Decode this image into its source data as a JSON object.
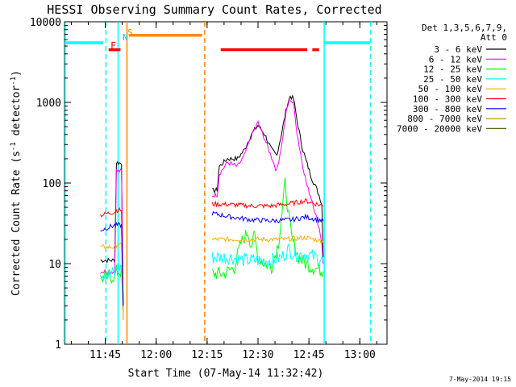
{
  "chart_data": {
    "type": "line",
    "title": "HESSI Observing Summary Count Rates, Corrected",
    "xlabel": "Start Time (07-May-14 11:32:42)",
    "ylabel_main": "Corrected Count Rate (s",
    "ylabel_sup1": "-1",
    "ylabel_mid": " detector",
    "ylabel_sup2": "-1",
    "ylabel_end": ")",
    "yscale": "log",
    "ylim": [
      1,
      10000
    ],
    "xlim_minutes_after_1130": [
      3,
      98
    ],
    "x_ticks": [
      {
        "label": "11:45",
        "min": 15
      },
      {
        "label": "12:00",
        "min": 30
      },
      {
        "label": "12:15",
        "min": 45
      },
      {
        "label": "12:30",
        "min": 60
      },
      {
        "label": "12:45",
        "min": 75
      },
      {
        "label": "13:00",
        "min": 90
      }
    ],
    "y_ticks": [
      {
        "label": "1",
        "value": 1
      },
      {
        "label": "10",
        "value": 10
      },
      {
        "label": "100",
        "value": 100
      },
      {
        "label": "1000",
        "value": 1000
      },
      {
        "label": "10000",
        "value": 10000
      }
    ],
    "legend_header": [
      "Det 1,3,5,6,7,9,",
      "Att 0"
    ],
    "legend_placement": "right",
    "footer_date": "7-May-2014 19:15",
    "flag_labels": {
      "F": "F",
      "N": "N",
      "S": "S"
    },
    "series": [
      {
        "name": "3 - 6 keV",
        "color": "#000000",
        "points": [
          [
            13.6,
            11
          ],
          [
            17.8,
            11
          ],
          [
            18.3,
            180
          ],
          [
            19.8,
            175
          ],
          [
            20.3,
            3
          ],
          [
            46.5,
            80
          ],
          [
            48,
            82
          ],
          [
            48.6,
            160
          ],
          [
            51,
            200
          ],
          [
            54,
            200
          ],
          [
            56,
            260
          ],
          [
            58,
            400
          ],
          [
            60,
            520
          ],
          [
            62,
            400
          ],
          [
            64,
            260
          ],
          [
            65.5,
            220
          ],
          [
            67,
            420
          ],
          [
            68.5,
            900
          ],
          [
            69.5,
            1200
          ],
          [
            70.5,
            1100
          ],
          [
            71.5,
            600
          ],
          [
            73,
            280
          ],
          [
            74.5,
            170
          ],
          [
            76,
            110
          ],
          [
            77,
            90
          ],
          [
            78,
            70
          ],
          [
            78.8,
            55
          ],
          [
            79.2,
            12
          ]
        ]
      },
      {
        "name": "6 - 12 keV",
        "color": "#ff00ff",
        "points": [
          [
            13.6,
            8
          ],
          [
            17.8,
            8
          ],
          [
            18.3,
            140
          ],
          [
            19.8,
            140
          ],
          [
            20.3,
            2.5
          ],
          [
            46.5,
            70
          ],
          [
            48,
            72
          ],
          [
            48.6,
            130
          ],
          [
            51,
            180
          ],
          [
            54,
            160
          ],
          [
            56,
            220
          ],
          [
            58,
            380
          ],
          [
            60,
            560
          ],
          [
            62,
            350
          ],
          [
            64,
            210
          ],
          [
            65.5,
            140
          ],
          [
            67,
            300
          ],
          [
            68.5,
            850
          ],
          [
            69.5,
            1100
          ],
          [
            70.5,
            950
          ],
          [
            71.5,
            420
          ],
          [
            73,
            180
          ],
          [
            74.5,
            90
          ],
          [
            76,
            60
          ],
          [
            77,
            40
          ],
          [
            78,
            28
          ],
          [
            78.8,
            18
          ],
          [
            79.2,
            10
          ]
        ]
      },
      {
        "name": "12 - 25 keV",
        "color": "#00ff00",
        "points": [
          [
            13.6,
            6.5
          ],
          [
            17.8,
            7
          ],
          [
            18.3,
            8
          ],
          [
            19.8,
            8
          ],
          [
            20.3,
            2
          ],
          [
            46.5,
            7.5
          ],
          [
            50,
            7.5
          ],
          [
            53,
            9
          ],
          [
            55,
            18
          ],
          [
            57,
            25
          ],
          [
            58,
            17
          ],
          [
            59,
            22
          ],
          [
            60,
            12
          ],
          [
            62,
            10
          ],
          [
            64,
            9
          ],
          [
            66,
            18
          ],
          [
            67,
            40
          ],
          [
            68,
            100
          ],
          [
            69,
            40
          ],
          [
            70,
            20
          ],
          [
            72,
            12
          ],
          [
            74,
            10
          ],
          [
            76,
            9
          ],
          [
            78,
            8.5
          ],
          [
            79.2,
            8
          ]
        ]
      },
      {
        "name": "25 - 50 keV",
        "color": "#00ffff",
        "points": [
          [
            13.6,
            7.5
          ],
          [
            17.8,
            7.5
          ],
          [
            18.3,
            9
          ],
          [
            19.8,
            9
          ],
          [
            20.3,
            2
          ],
          [
            46.5,
            12
          ],
          [
            52,
            12
          ],
          [
            56,
            11
          ],
          [
            60,
            11
          ],
          [
            64,
            11
          ],
          [
            67,
            12
          ],
          [
            69,
            15
          ],
          [
            71,
            13
          ],
          [
            74,
            13
          ],
          [
            77,
            12
          ],
          [
            79.2,
            11
          ]
        ]
      },
      {
        "name": "50 - 100 keV",
        "color": "#ffaa00",
        "points": [
          [
            13.6,
            16
          ],
          [
            17.8,
            16
          ],
          [
            18.3,
            17
          ],
          [
            19.8,
            17
          ],
          [
            20.3,
            2
          ],
          [
            46.5,
            20
          ],
          [
            55,
            20
          ],
          [
            62,
            20
          ],
          [
            68,
            20
          ],
          [
            74,
            21
          ],
          [
            79.2,
            19
          ]
        ]
      },
      {
        "name": "100 - 300 keV",
        "color": "#ff0000",
        "points": [
          [
            13.6,
            40
          ],
          [
            17.8,
            44
          ],
          [
            18.3,
            46
          ],
          [
            19.8,
            46
          ],
          [
            20.3,
            3
          ],
          [
            46.5,
            55
          ],
          [
            52,
            54
          ],
          [
            58,
            52
          ],
          [
            64,
            52
          ],
          [
            70,
            56
          ],
          [
            74,
            60
          ],
          [
            79.2,
            52
          ]
        ]
      },
      {
        "name": "300 - 800 keV",
        "color": "#0000ff",
        "points": [
          [
            13.6,
            26
          ],
          [
            17.8,
            30
          ],
          [
            18.3,
            30
          ],
          [
            19.8,
            30
          ],
          [
            20.3,
            3
          ],
          [
            46.5,
            42
          ],
          [
            52,
            38
          ],
          [
            58,
            35
          ],
          [
            64,
            34
          ],
          [
            70,
            35
          ],
          [
            74,
            38
          ],
          [
            79.2,
            34
          ]
        ]
      },
      {
        "name": "800 - 7000 keV",
        "color": "#cc8800",
        "points": []
      },
      {
        "name": "7000 - 20000 keV",
        "color": "#666600",
        "points": []
      }
    ],
    "flag_bars": [
      {
        "label": "saa_line_left",
        "color": "#00ffff",
        "x0": 3,
        "x1": 14.5,
        "y": 5500
      },
      {
        "label": "saa_line_right",
        "color": "#00ffff",
        "x0": 79.5,
        "x1": 93,
        "y": 5500
      },
      {
        "label": "flare_bar_1",
        "color": "#ff0000",
        "x0": 16,
        "x1": 19.5,
        "y": 4500
      },
      {
        "label": "flare_bar_2",
        "color": "#ff0000",
        "x0": 49,
        "x1": 74.5,
        "y": 4500
      },
      {
        "label": "flare_bar_3",
        "color": "#ff0000",
        "x0": 76,
        "x1": 78,
        "y": 4500
      },
      {
        "label": "attenuator_bar",
        "color": "#ff8800",
        "x0": 22,
        "x1": 43.5,
        "y": 6800
      }
    ],
    "vlines": [
      {
        "x": 3.2,
        "color": "#00ffff",
        "style": "solid"
      },
      {
        "x": 15.2,
        "color": "#00ffff",
        "style": "dashed"
      },
      {
        "x": 18.8,
        "color": "#00ffff",
        "style": "solid"
      },
      {
        "x": 21.4,
        "color": "#ff8800",
        "style": "solid"
      },
      {
        "x": 44.3,
        "color": "#ff8800",
        "style": "dashed"
      },
      {
        "x": 79.5,
        "color": "#00ffff",
        "style": "solid"
      },
      {
        "x": 93.2,
        "color": "#00ffff",
        "style": "dashed"
      }
    ]
  }
}
